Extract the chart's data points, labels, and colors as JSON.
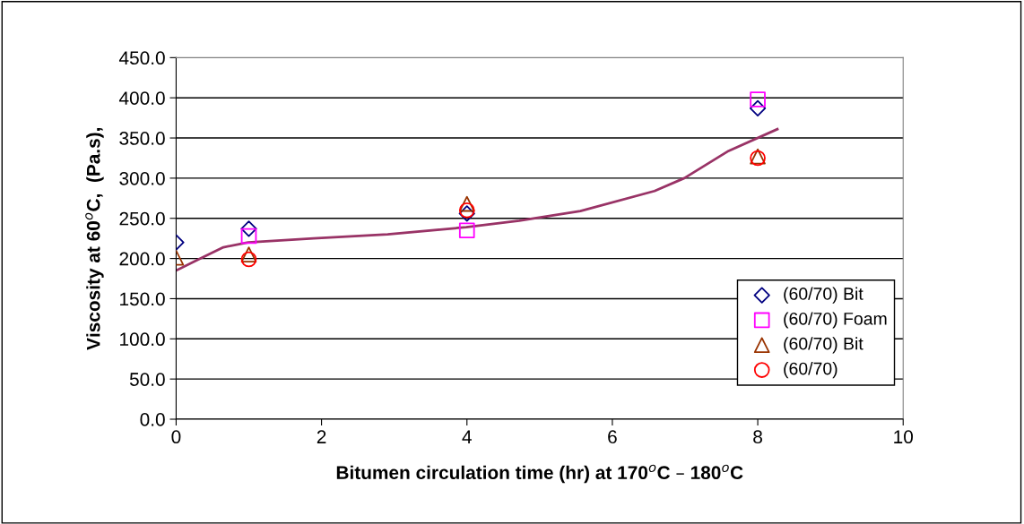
{
  "chart_data": {
    "type": "scatter",
    "xlabel": "Bitumen circulation time (hr) at 170$^{o}$C – 180$^{o}$C",
    "ylabel": "Viscosity at 60$^{o}$C,  (Pa.s),",
    "xlim": [
      0,
      10
    ],
    "xticks": [
      0,
      2,
      4,
      6,
      8,
      10
    ],
    "ylim": [
      0,
      450
    ],
    "yticks": [
      {
        "value": 0,
        "label": "0.0"
      },
      {
        "value": 50,
        "label": "50.0"
      },
      {
        "value": 100,
        "label": "100.0"
      },
      {
        "value": 150,
        "label": "150.0"
      },
      {
        "value": 200,
        "label": "200.0"
      },
      {
        "value": 250,
        "label": "250.0"
      },
      {
        "value": 300,
        "label": "300.0"
      },
      {
        "value": 350,
        "label": "350.0"
      },
      {
        "value": 400,
        "label": "400.0"
      },
      {
        "value": 450,
        "label": "450.0"
      }
    ],
    "grid": "y",
    "legend": "bottom right",
    "series": [
      {
        "name": "(60/70) Bit",
        "color": "#000080",
        "marker": "diamond",
        "x": [
          0,
          1,
          4,
          8
        ],
        "values": [
          220,
          237,
          256,
          387
        ]
      },
      {
        "name": "(60/70) Foam",
        "color": "#ff00ff",
        "marker": "square",
        "x": [
          1,
          4,
          8
        ],
        "values": [
          228,
          235,
          398
        ]
      },
      {
        "name": "(60/70) Bit",
        "color": "#993300",
        "marker": "triangle",
        "x": [
          0,
          1,
          4,
          8
        ],
        "values": [
          201,
          205,
          268,
          327
        ]
      },
      {
        "name": "(60/70)",
        "color": "#ff0000",
        "marker": "circle",
        "x": [
          1,
          4,
          8
        ],
        "values": [
          199,
          260,
          325
        ]
      },
      {
        "type": "line",
        "color": "#993366",
        "marker": "none",
        "x": [
          0,
          0.31,
          0.65,
          0.99,
          1.89,
          2.91,
          3.99,
          4.72,
          5.56,
          6.58,
          6.99,
          7.6,
          8.27
        ],
        "values": [
          185,
          199,
          214,
          220,
          225,
          230,
          239,
          247,
          259,
          284,
          300,
          334,
          361
        ]
      }
    ]
  }
}
